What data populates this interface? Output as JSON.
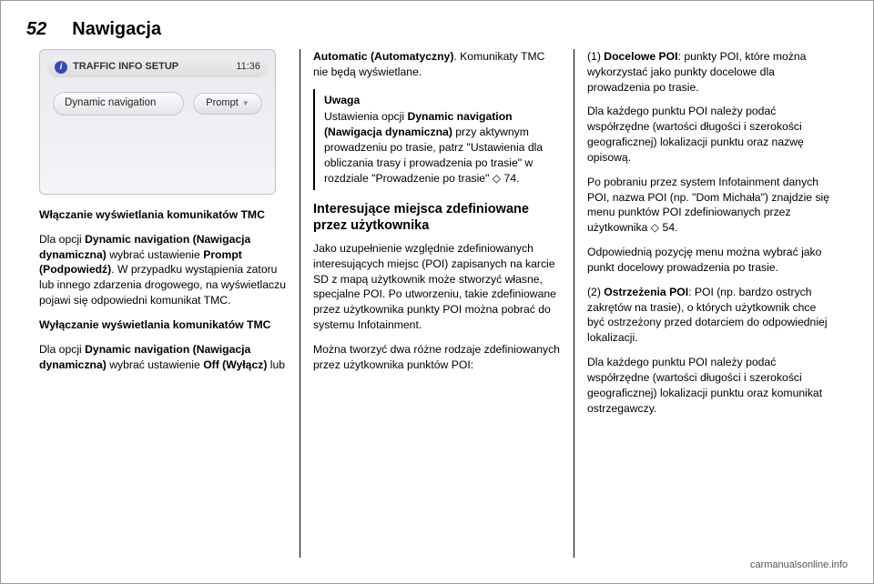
{
  "header": {
    "page_number": "52",
    "section_title": "Nawigacja"
  },
  "screenshot": {
    "title_bar_text": "TRAFFIC INFO SETUP",
    "clock": "11:36",
    "row_label": "Dynamic navigation",
    "row_button": "Prompt"
  },
  "col1": {
    "h1": "Włączanie wyświetlania komunikatów TMC",
    "p1_a": "Dla opcji ",
    "p1_b": "Dynamic navigation (Nawigacja dynamiczna)",
    "p1_c": " wybrać ustawienie ",
    "p1_d": "Prompt (Podpowiedź)",
    "p1_e": ". W przypadku wystąpienia zatoru lub innego zdarzenia drogowego, na wyświetlaczu pojawi się odpowiedni komunikat TMC.",
    "h2": "Wyłączanie wyświetlania komunikatów TMC",
    "p2_a": "Dla opcji ",
    "p2_b": "Dynamic navigation (Nawigacja dynamiczna)",
    "p2_c": " wybrać ustawienie ",
    "p2_d": "Off (Wyłącz)",
    "p2_e": " lub"
  },
  "col2": {
    "top_a": "Automatic (Automatyczny)",
    "top_b": ". Komunikaty TMC nie będą wyświetlane.",
    "note_hdr": "Uwaga",
    "note_body_a": "Ustawienia opcji ",
    "note_body_b": "Dynamic navigation (Nawigacja dynamiczna)",
    "note_body_c": " przy aktywnym prowadzeniu po trasie, patrz \"Ustawienia dla obliczania trasy i prowadzenia po trasie\" w rozdziale \"Prowadzenie po trasie\" ",
    "note_ref": "◇ 74",
    "note_body_d": ".",
    "sub": "Interesujące miejsca zdefiniowane przez użytkownika",
    "p1": "Jako uzupełnienie względnie zdefiniowanych interesujących miejsc (POI) zapisanych na karcie SD z mapą użytkownik może stworzyć własne, specjalne POI. Po utworzeniu, takie zdefiniowane przez użytkownika punkty POI można pobrać do systemu Infotainment.",
    "p2": "Można tworzyć dwa różne rodzaje zdefiniowanych przez użytkownika punktów POI:"
  },
  "col3": {
    "p1_a": "(1) ",
    "p1_b": "Docelowe POI",
    "p1_c": ": punkty POI, które można wykorzystać jako punkty docelowe dla prowadzenia po trasie.",
    "p2": "Dla każdego punktu POI należy podać współrzędne (wartości długości i szerokości geograficznej) lokalizacji punktu oraz nazwę opisową.",
    "p3_a": "Po pobraniu przez system Infotainment danych POI, nazwa POI (np. \"Dom Michała\") znajdzie się menu punktów POI zdefiniowanych przez użytkownika ",
    "p3_ref": "◇ 54",
    "p3_b": ".",
    "p4": "Odpowiednią pozycję menu można wybrać jako punkt docelowy prowadzenia po trasie.",
    "p5_a": "(2) ",
    "p5_b": "Ostrzeżenia POI",
    "p5_c": ": POI (np. bardzo ostrych zakrętów na trasie), o których użytkownik chce być ostrzeżony przed dotarciem do odpowiedniej lokalizacji.",
    "p6": "Dla każdego punktu POI należy podać współrzędne (wartości długości i szerokości geograficznej) lokalizacji punktu oraz komunikat ostrzegawczy."
  },
  "footer": "carmanualsonline.info"
}
